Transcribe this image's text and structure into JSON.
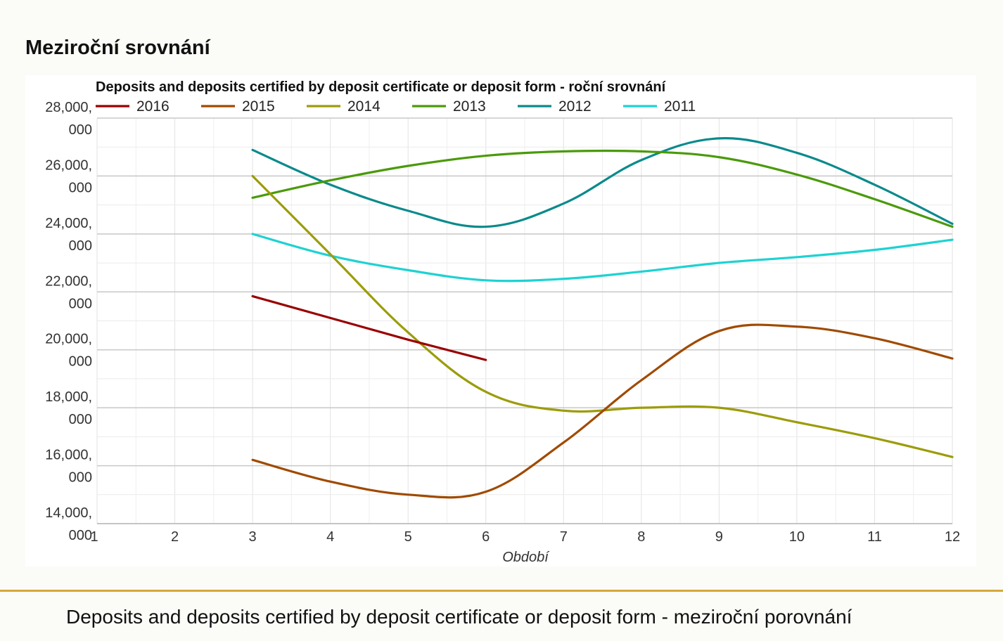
{
  "page": {
    "heading": "Meziroční srovnání",
    "caption": "Deposits and deposits certified by deposit certificate or deposit form - meziroční porovnání"
  },
  "chart_data": {
    "type": "line",
    "title": "Deposits and deposits certified by deposit certificate or deposit form - roční srovnání",
    "xlabel": "Období",
    "ylabel": "",
    "x": [
      1,
      2,
      3,
      4,
      5,
      6,
      7,
      8,
      9,
      10,
      11,
      12
    ],
    "x_tick_labels": [
      "1",
      "2",
      "3",
      "4",
      "5",
      "6",
      "7",
      "8",
      "9",
      "10",
      "11",
      "12"
    ],
    "xlim": [
      1,
      12
    ],
    "ylim": [
      14000,
      28000
    ],
    "y_ticks": [
      14000,
      16000,
      18000,
      20000,
      22000,
      24000,
      26000,
      28000
    ],
    "y_tick_labels": [
      [
        "14,000,",
        "000"
      ],
      [
        "16,000,",
        "000"
      ],
      [
        "18,000,",
        "000"
      ],
      [
        "20,000,",
        "000"
      ],
      [
        "22,000,",
        "000"
      ],
      [
        "24,000,",
        "000"
      ],
      [
        "26,000,",
        "000"
      ],
      [
        "28,000,",
        "000"
      ]
    ],
    "y_unit_note": "values shown in thousands (axis labels read e.g. 28,000,000)",
    "grid": true,
    "legend_position": "top",
    "series": [
      {
        "name": "2016",
        "color": "#990000",
        "x": [
          3,
          4,
          5,
          6
        ],
        "y": [
          21850,
          21100,
          20350,
          19650
        ]
      },
      {
        "name": "2015",
        "color": "#a04a00",
        "x": [
          3,
          4,
          5,
          6,
          7,
          8,
          9,
          10,
          11,
          12
        ],
        "y": [
          16200,
          15450,
          15000,
          15100,
          16800,
          18950,
          20650,
          20800,
          20400,
          19700
        ]
      },
      {
        "name": "2014",
        "color": "#9c9c0a",
        "x": [
          3,
          4,
          5,
          6,
          7,
          8,
          9,
          10,
          11,
          12
        ],
        "y": [
          26000,
          23300,
          20600,
          18550,
          17900,
          18000,
          18000,
          17500,
          16950,
          16300
        ]
      },
      {
        "name": "2013",
        "color": "#4a9a0a",
        "x": [
          3,
          4,
          5,
          6,
          7,
          8,
          9,
          10,
          11,
          12
        ],
        "y": [
          25250,
          25850,
          26350,
          26700,
          26850,
          26850,
          26650,
          26050,
          25200,
          24250
        ]
      },
      {
        "name": "2012",
        "color": "#0a8a8c",
        "x": [
          3,
          4,
          5,
          6,
          7,
          8,
          9,
          10,
          11,
          12
        ],
        "y": [
          26900,
          25700,
          24800,
          24250,
          25050,
          26550,
          27300,
          26800,
          25700,
          24350
        ]
      },
      {
        "name": "2011",
        "color": "#1ed2d2",
        "x": [
          3,
          4,
          5,
          6,
          7,
          8,
          9,
          10,
          11,
          12
        ],
        "y": [
          24000,
          23250,
          22750,
          22400,
          22450,
          22700,
          23000,
          23200,
          23450,
          23800
        ]
      }
    ]
  }
}
